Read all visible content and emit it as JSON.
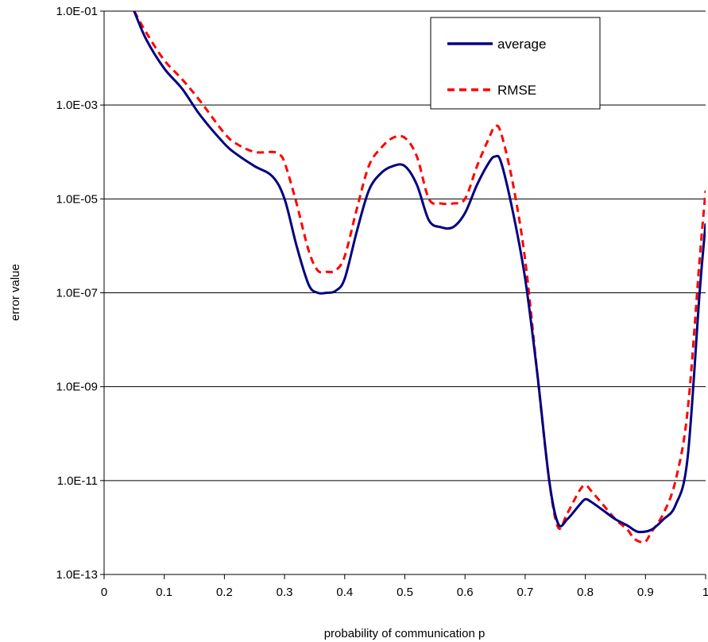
{
  "chart_data": {
    "type": "line",
    "title": "",
    "xlabel": "probability of communication p",
    "ylabel": "error value",
    "xlim": [
      0,
      1
    ],
    "ylim": [
      1e-13,
      0.1
    ],
    "y_scale": "log",
    "grid": "horizontal",
    "legend_position": "top-right",
    "x_ticks": [
      "0",
      "0.1",
      "0.2",
      "0.3",
      "0.4",
      "0.5",
      "0.6",
      "0.7",
      "0.8",
      "0.9",
      "1"
    ],
    "y_ticks": [
      "1.0E-13",
      "1.0E-11",
      "1.0E-09",
      "1.0E-07",
      "1.0E-05",
      "1.0E-03",
      "1.0E-01"
    ],
    "series": [
      {
        "name": "average",
        "color": "#000080",
        "style": "solid",
        "x": [
          0.05,
          0.07,
          0.1,
          0.13,
          0.16,
          0.2,
          0.22,
          0.25,
          0.28,
          0.3,
          0.32,
          0.34,
          0.355,
          0.37,
          0.385,
          0.4,
          0.42,
          0.44,
          0.46,
          0.48,
          0.5,
          0.52,
          0.54,
          0.56,
          0.58,
          0.6,
          0.62,
          0.64,
          0.65,
          0.66,
          0.68,
          0.7,
          0.72,
          0.74,
          0.755,
          0.77,
          0.79,
          0.8,
          0.81,
          0.83,
          0.85,
          0.87,
          0.88,
          0.89,
          0.91,
          0.93,
          0.95,
          0.97,
          0.99,
          1.0
        ],
        "y": [
          0.1,
          0.025,
          0.006,
          0.0022,
          0.0006,
          0.00015,
          9e-05,
          5e-05,
          3e-05,
          1e-05,
          1e-06,
          1.5e-07,
          1e-07,
          1e-07,
          1.1e-07,
          2e-07,
          2e-06,
          1.5e-05,
          3.5e-05,
          5e-05,
          5e-05,
          2e-05,
          3.5e-06,
          2.5e-06,
          2.5e-06,
          5e-06,
          2e-05,
          6e-05,
          8e-05,
          6e-05,
          5e-06,
          2e-07,
          2e-09,
          1e-11,
          1.2e-12,
          1.5e-12,
          3e-12,
          4e-12,
          3.5e-12,
          2.3e-12,
          1.5e-12,
          1.1e-12,
          9e-13,
          8e-13,
          9e-13,
          1.5e-12,
          3e-12,
          3e-11,
          1e-07,
          3e-06
        ]
      },
      {
        "name": "RMSE",
        "color": "#ff0000",
        "style": "dashed",
        "x": [
          0.05,
          0.07,
          0.1,
          0.13,
          0.16,
          0.2,
          0.22,
          0.25,
          0.28,
          0.29,
          0.3,
          0.32,
          0.34,
          0.355,
          0.37,
          0.385,
          0.4,
          0.42,
          0.44,
          0.46,
          0.48,
          0.5,
          0.52,
          0.54,
          0.56,
          0.58,
          0.6,
          0.62,
          0.64,
          0.65,
          0.66,
          0.68,
          0.7,
          0.72,
          0.74,
          0.755,
          0.77,
          0.79,
          0.8,
          0.81,
          0.83,
          0.85,
          0.87,
          0.88,
          0.89,
          0.9,
          0.91,
          0.93,
          0.95,
          0.97,
          0.99,
          1.0
        ],
        "y": [
          0.1,
          0.035,
          0.009,
          0.0035,
          0.0012,
          0.00025,
          0.00015,
          0.0001,
          0.0001,
          9e-05,
          6e-05,
          8e-06,
          8e-07,
          3e-07,
          2.8e-07,
          3e-07,
          6e-07,
          6e-06,
          5e-05,
          0.00012,
          0.0002,
          0.0002,
          8e-05,
          1e-05,
          8e-06,
          8e-06,
          1e-05,
          5e-05,
          0.0002,
          0.00035,
          0.00025,
          2e-05,
          5e-07,
          2e-09,
          1e-11,
          1e-12,
          2e-12,
          6e-12,
          8e-12,
          6e-12,
          3e-12,
          1.5e-12,
          9e-13,
          6e-13,
          5e-13,
          5e-13,
          8e-13,
          2e-12,
          1e-11,
          3e-10,
          5e-07,
          1.5e-05
        ]
      }
    ]
  }
}
